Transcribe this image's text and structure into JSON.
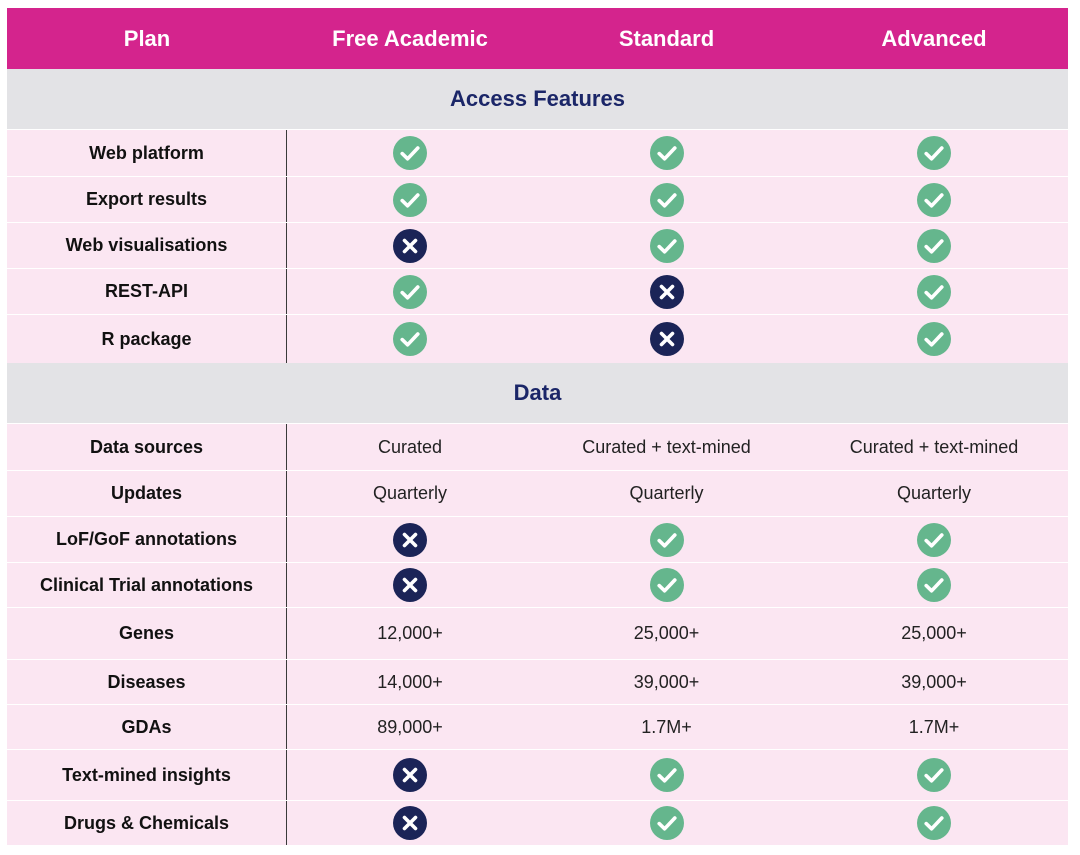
{
  "header": {
    "columns": [
      "Plan",
      "Free Academic",
      "Standard",
      "Advanced"
    ]
  },
  "colors": {
    "header_bg": "#d4248d",
    "section_bg": "#e3e3e6",
    "row_bg": "#fbe6f2",
    "check": "#65b68d",
    "cross": "#1b2457",
    "section_text": "#1b2668"
  },
  "legend": {
    "check": "check-icon",
    "cross": "cross-icon"
  },
  "sections": [
    {
      "title": "Access Features",
      "rows": [
        {
          "label": "Web platform",
          "cells": [
            "check",
            "check",
            "check"
          ]
        },
        {
          "label": "Export results",
          "cells": [
            "check",
            "check",
            "check"
          ]
        },
        {
          "label": "Web visualisations",
          "cells": [
            "cross",
            "check",
            "check"
          ]
        },
        {
          "label": "REST-API",
          "cells": [
            "check",
            "cross",
            "check"
          ]
        },
        {
          "label": "R package",
          "cells": [
            "check",
            "cross",
            "check"
          ]
        }
      ]
    },
    {
      "title": "Data",
      "rows": [
        {
          "label": "Data sources",
          "cells": [
            "Curated",
            "Curated + text-mined",
            "Curated + text-mined"
          ]
        },
        {
          "label": "Updates",
          "cells": [
            "Quarterly",
            "Quarterly",
            "Quarterly"
          ]
        },
        {
          "label": "LoF/GoF annotations",
          "cells": [
            "cross",
            "check",
            "check"
          ]
        },
        {
          "label": "Clinical Trial annotations",
          "cells": [
            "cross",
            "check",
            "check"
          ]
        },
        {
          "label": "Genes",
          "cells": [
            "12,000+",
            "25,000+",
            "25,000+"
          ]
        },
        {
          "label": "Diseases",
          "cells": [
            "14,000+",
            "39,000+",
            "39,000+"
          ]
        },
        {
          "label": "GDAs",
          "cells": [
            "89,000+",
            "1.7M+",
            "1.7M+"
          ]
        },
        {
          "label": "Text-mined insights",
          "cells": [
            "cross",
            "check",
            "check"
          ]
        },
        {
          "label": "Drugs & Chemicals",
          "cells": [
            "cross",
            "check",
            "check"
          ]
        }
      ]
    }
  ]
}
